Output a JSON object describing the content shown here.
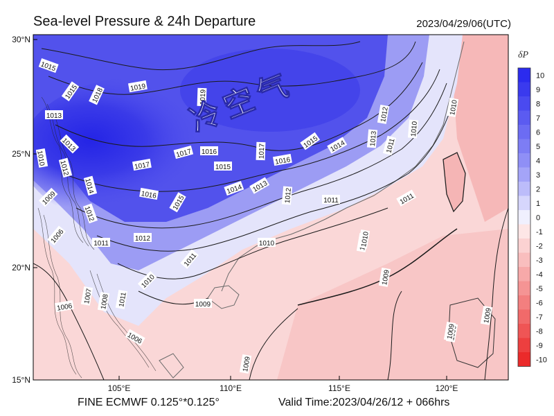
{
  "header": {
    "title": "Sea-level Pressure & 24h Departure",
    "datetime": "2023/04/29/06(UTC)"
  },
  "footer": {
    "model": "FINE ECMWF 0.125°*0.125°",
    "valid_time": "Valid Time:2023/04/26/12 + 066hrs"
  },
  "annotation": "冷空气",
  "axes": {
    "lat_ticks": [
      "30°N",
      "25°N",
      "20°N",
      "15°N"
    ],
    "lon_ticks": [
      "105°E",
      "110°E",
      "115°E",
      "120°E"
    ]
  },
  "colorbar": {
    "title": "δP",
    "labels": [
      "10",
      "9",
      "8",
      "7",
      "6",
      "5",
      "4",
      "3",
      "2",
      "1",
      "0",
      "-1",
      "-2",
      "-3",
      "-4",
      "-5",
      "-6",
      "-7",
      "-8",
      "-9",
      "-10"
    ],
    "colors": [
      "#2b2bee",
      "#3a3aee",
      "#4a4af0",
      "#5b5bf1",
      "#6c6cf3",
      "#7d7df4",
      "#8f8ff6",
      "#a4a4f8",
      "#bcbcfa",
      "#d6d6fc",
      "#f0f0fe",
      "#fde6e6",
      "#fbd2d2",
      "#f9bebe",
      "#f7a9a9",
      "#f59494",
      "#f37f7f",
      "#f16a6a",
      "#ef5555",
      "#ed3f3f",
      "#eb2a2a"
    ]
  },
  "isobar_labels": [
    {
      "text": "1015",
      "id": "a"
    },
    {
      "text": "1015",
      "id": "b"
    },
    {
      "text": "1018",
      "id": "c"
    },
    {
      "text": "1019",
      "id": "d"
    },
    {
      "text": "1019",
      "id": "e"
    },
    {
      "text": "1013",
      "id": "f"
    },
    {
      "text": "1013",
      "id": "g"
    },
    {
      "text": "1010",
      "id": "h"
    },
    {
      "text": "1012",
      "id": "i"
    },
    {
      "text": "1017",
      "id": "j"
    },
    {
      "text": "1016",
      "id": "k"
    },
    {
      "text": "1017",
      "id": "l"
    },
    {
      "text": "1015",
      "id": "m"
    },
    {
      "text": "1017",
      "id": "n"
    },
    {
      "text": "1016",
      "id": "o"
    },
    {
      "text": "1015",
      "id": "p"
    },
    {
      "text": "1014",
      "id": "q"
    },
    {
      "text": "1012",
      "id": "r"
    },
    {
      "text": "1013",
      "id": "s"
    },
    {
      "text": "1011",
      "id": "t"
    },
    {
      "text": "1010",
      "id": "u"
    },
    {
      "text": "1014",
      "id": "v"
    },
    {
      "text": "1016",
      "id": "w"
    },
    {
      "text": "1015",
      "id": "x"
    },
    {
      "text": "1014",
      "id": "y"
    },
    {
      "text": "1013",
      "id": "z"
    },
    {
      "text": "1012",
      "id": "aa"
    },
    {
      "text": "1011",
      "id": "ab"
    },
    {
      "text": "1009",
      "id": "ac"
    },
    {
      "text": "1012",
      "id": "ad"
    },
    {
      "text": "1011",
      "id": "ae"
    },
    {
      "text": "1012",
      "id": "af"
    },
    {
      "text": "1011",
      "id": "ag"
    },
    {
      "text": "1010",
      "id": "ah"
    },
    {
      "text": "1010",
      "id": "ai"
    },
    {
      "text": "1010",
      "id": "aj"
    },
    {
      "text": "1011",
      "id": "ak"
    },
    {
      "text": "1010",
      "id": "al"
    },
    {
      "text": "1009",
      "id": "am"
    },
    {
      "text": "1009",
      "id": "an"
    },
    {
      "text": "1009",
      "id": "ao"
    },
    {
      "text": "1009",
      "id": "ap"
    },
    {
      "text": "1008",
      "id": "aq"
    },
    {
      "text": "1007",
      "id": "ar"
    },
    {
      "text": "1006",
      "id": "as"
    },
    {
      "text": "1006",
      "id": "at"
    },
    {
      "text": "1006",
      "id": "au"
    },
    {
      "text": "1011",
      "id": "av"
    },
    {
      "text": "1010",
      "id": "aw"
    },
    {
      "text": "1009",
      "id": "ax"
    },
    {
      "text": "1009",
      "id": "ay"
    }
  ]
}
